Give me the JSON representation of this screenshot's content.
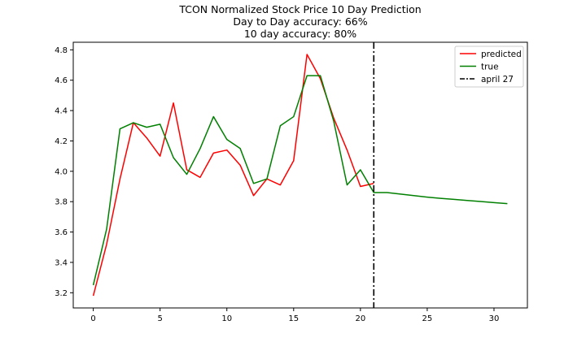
{
  "chart_data": {
    "type": "line",
    "title_lines": [
      "TCON Normalized Stock Price 10 Day Prediction",
      "Day to Day accuracy: 66%",
      "10 day accuracy: 80%"
    ],
    "xlabel": "",
    "ylabel": "",
    "xlim": [
      -1.5,
      32.5
    ],
    "ylim": [
      3.1,
      4.85
    ],
    "x_ticks": [
      0,
      5,
      10,
      15,
      20,
      25,
      30
    ],
    "y_ticks": [
      3.2,
      3.4,
      3.6,
      3.8,
      4.0,
      4.2,
      4.4,
      4.6,
      4.8
    ],
    "grid": false,
    "legend_position": "top-right",
    "series": [
      {
        "name": "predicted",
        "color": "#ff0000",
        "x": [
          0,
          1,
          2,
          3,
          4,
          5,
          6,
          7,
          8,
          9,
          10,
          11,
          12,
          13,
          14,
          15,
          16,
          17,
          18,
          19,
          20,
          21
        ],
        "y": [
          3.18,
          3.52,
          3.95,
          4.32,
          4.22,
          4.1,
          4.45,
          4.01,
          3.96,
          4.12,
          4.14,
          4.04,
          3.84,
          3.95,
          3.91,
          4.07,
          4.77,
          4.61,
          4.35,
          4.14,
          3.9,
          3.92
        ]
      },
      {
        "name": "true",
        "color": "#008000",
        "x": [
          0,
          1,
          2,
          3,
          4,
          5,
          6,
          7,
          8,
          9,
          10,
          11,
          12,
          13,
          14,
          15,
          16,
          17,
          18,
          19,
          20,
          21,
          22,
          23,
          24,
          25,
          26,
          27,
          28,
          29,
          30,
          31
        ],
        "y": [
          3.25,
          3.62,
          4.28,
          4.32,
          4.29,
          4.31,
          4.09,
          3.98,
          4.15,
          4.36,
          4.21,
          4.15,
          3.92,
          3.95,
          4.3,
          4.36,
          4.63,
          4.63,
          4.33,
          3.91,
          4.01,
          3.86,
          3.86,
          3.85,
          3.84,
          3.83,
          3.822,
          3.815,
          3.808,
          3.801,
          3.794,
          3.787
        ]
      }
    ],
    "vline": {
      "x": 21,
      "label": "april 27",
      "color": "#000000",
      "style": "dashdot"
    }
  }
}
